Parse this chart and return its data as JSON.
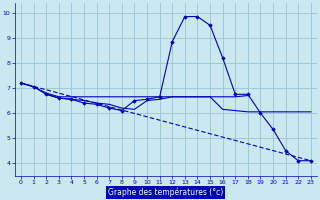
{
  "background_color": "#cbe8f0",
  "grid_color": "#a0c8d8",
  "line_color": "#0000bb",
  "xlabel": "Graphe des températures (°c)",
  "xlabel_color": "#ffffff",
  "xlabel_bg": "#0000bb",
  "ylim": [
    3.5,
    10.4
  ],
  "xlim": [
    -0.5,
    23.5
  ],
  "yticks": [
    4,
    5,
    6,
    7,
    8,
    9,
    10
  ],
  "xticks": [
    0,
    1,
    2,
    3,
    4,
    5,
    6,
    7,
    8,
    9,
    10,
    11,
    12,
    13,
    14,
    15,
    16,
    17,
    18,
    19,
    20,
    21,
    22,
    23
  ],
  "series": {
    "line_diagonal": {
      "x": [
        0,
        23
      ],
      "y": [
        7.2,
        4.1
      ],
      "marker": false,
      "lw": 0.8,
      "dashed": true
    },
    "line_flat_high": {
      "x": [
        0,
        1,
        2,
        3,
        4,
        5,
        6,
        7,
        8,
        9,
        10,
        11,
        12,
        13,
        14,
        15,
        16,
        17,
        18
      ],
      "y": [
        7.2,
        7.05,
        6.8,
        6.65,
        6.65,
        6.65,
        6.65,
        6.65,
        6.65,
        6.65,
        6.65,
        6.65,
        6.65,
        6.65,
        6.65,
        6.65,
        6.65,
        6.65,
        6.7
      ],
      "marker": false,
      "lw": 0.8,
      "dashed": false
    },
    "line_flat_mid": {
      "x": [
        2,
        3,
        4,
        5,
        6,
        7,
        8,
        9,
        10,
        11,
        12,
        13,
        14,
        15,
        16,
        17,
        18,
        19,
        20,
        21,
        22,
        23
      ],
      "y": [
        6.75,
        6.6,
        6.55,
        6.5,
        6.4,
        6.35,
        6.2,
        6.15,
        6.5,
        6.55,
        6.65,
        6.65,
        6.65,
        6.65,
        6.15,
        6.1,
        6.05,
        6.05,
        6.05,
        6.05,
        6.05,
        6.05
      ],
      "marker": false,
      "lw": 0.8,
      "dashed": false
    },
    "line_main": {
      "x": [
        0,
        1,
        2,
        3,
        4,
        5,
        6,
        7,
        8,
        9,
        10,
        11,
        12,
        13,
        14,
        15,
        16,
        17,
        18,
        19,
        20,
        21,
        22,
        23
      ],
      "y": [
        7.2,
        7.05,
        6.75,
        6.6,
        6.55,
        6.4,
        6.35,
        6.2,
        6.1,
        6.5,
        6.55,
        6.65,
        8.85,
        9.85,
        9.85,
        9.5,
        8.2,
        6.75,
        6.75,
        6.0,
        5.35,
        4.5,
        4.1,
        4.1
      ],
      "marker": true,
      "lw": 0.8,
      "dashed": false
    }
  }
}
